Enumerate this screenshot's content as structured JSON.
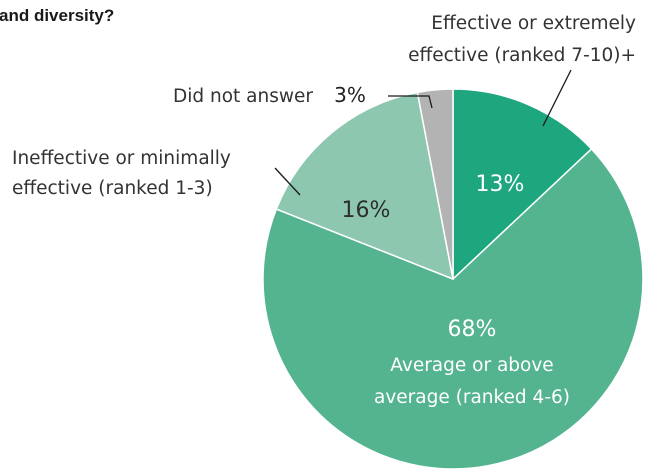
{
  "chart_data": {
    "type": "pie",
    "title": "and diversity?",
    "slices": [
      {
        "label": "Effective or extremely effective (ranked 7-10)+",
        "value": 13,
        "display": "13%",
        "color": "#1ea67e"
      },
      {
        "label": "Average or above average (ranked 4-6)",
        "value": 68,
        "display": "68%",
        "color": "#54b48f"
      },
      {
        "label": "Ineffective or minimally effective (ranked 1-3)",
        "value": 16,
        "display": "16%",
        "color": "#8dc7b0"
      },
      {
        "label": "Did not answer",
        "value": 3,
        "display": "3%",
        "color": "#b3b3b3"
      }
    ],
    "annotations": {
      "effective": [
        "Effective or extremely",
        "effective (ranked 7-10)+"
      ],
      "average": [
        "Average or above",
        "average (ranked 4-6)"
      ],
      "ineffective": [
        "Ineffective or minimally",
        "effective (ranked 1-3)"
      ],
      "no_answer": "Did not answer"
    }
  }
}
